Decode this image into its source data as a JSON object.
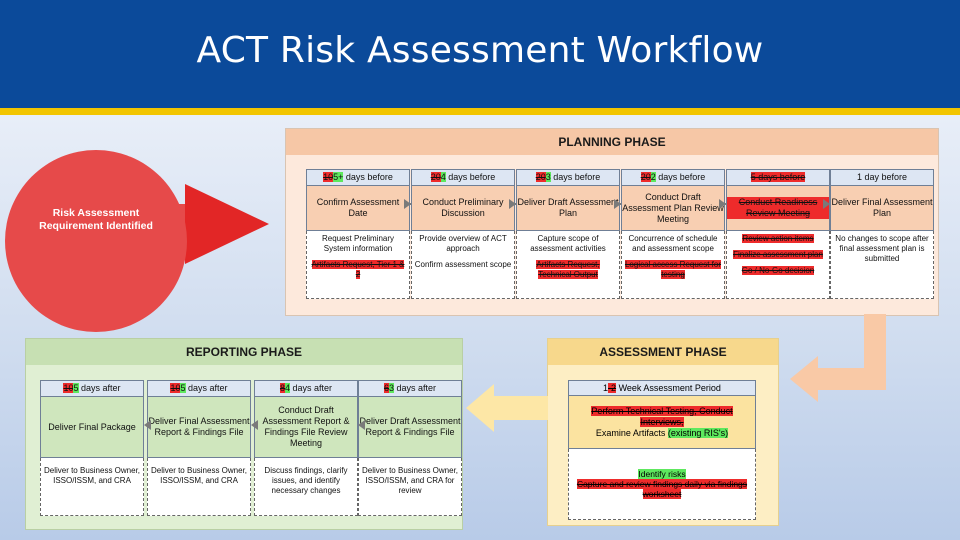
{
  "title": "ACT Risk Assessment Workflow",
  "circle": {
    "label": "Risk Assessment Requirement Identified"
  },
  "planning": {
    "title": "PLANNING PHASE",
    "steps": [
      {
        "timing_old": "10",
        "timing_new": "5+",
        "timing_rest": " days before",
        "label": "Confirm Assessment Date",
        "details": [
          "Request Preliminary System information"
        ],
        "details_red": [
          "Artifacts Request, Tier 1 & 2"
        ]
      },
      {
        "timing_old": "20",
        "timing_new": "4",
        "timing_rest": " days before",
        "label": "Conduct Preliminary Discussion",
        "details": [
          "Provide overview of ACT approach",
          "Confirm assessment scope"
        ],
        "details_red": []
      },
      {
        "timing_old": "20",
        "timing_new": "3",
        "timing_rest": " days before",
        "label": "Deliver Draft Assessment Plan",
        "details": [
          "Capture scope of assessment activities"
        ],
        "details_red": [
          "Artifacts Request, Technical Output"
        ]
      },
      {
        "timing_old": "20",
        "timing_new": "2",
        "timing_rest": " days before",
        "label": "Conduct Draft Assessment Plan Review Meeting",
        "details": [
          "Concurrence of schedule and assessment scope"
        ],
        "details_red": [
          "Logical access Request for testing"
        ]
      },
      {
        "timing_old": "",
        "timing_new": "",
        "timing_rest": "5 days before",
        "label": "Conduct Readiness Review Meeting",
        "details": [],
        "details_red": [
          "Review action items",
          "Finalize assessment plan",
          "Go / No-Go decision"
        ]
      },
      {
        "timing_old": "",
        "timing_new": "",
        "timing_rest": "1 day before",
        "label": "Deliver Final Assessment Plan",
        "details": [
          "No changes to scope after final assessment plan is submitted"
        ],
        "details_red": []
      }
    ]
  },
  "assessment": {
    "title": "ASSESSMENT PHASE",
    "timing_pre": "1",
    "timing_old": "-2",
    "timing_rest": " Week Assessment Period",
    "body_red": "Perform Technical Testing, Conduct Interviews,",
    "body_plain": "Examine Artifacts ",
    "body_green": "(existing RIS's)",
    "detail_green": "Identify risks",
    "detail_red": "Capture and review findings daily via findings worksheet"
  },
  "reporting": {
    "title": "REPORTING PHASE",
    "steps": [
      {
        "timing_old": "10",
        "timing_new": "5",
        "timing_rest": " days after",
        "label": "Deliver Final Package",
        "detail": "Deliver to Business Owner, ISSO/ISSM, and CRA"
      },
      {
        "timing_old": "10",
        "timing_new": "5",
        "timing_rest": " days after",
        "label": "Deliver Final Assessment Report & Findings File",
        "detail": "Deliver to Business Owner, ISSO/ISSM, and CRA"
      },
      {
        "timing_old": "8",
        "timing_new": "4",
        "timing_rest": " days after",
        "label": "Conduct Draft Assessment Report & Findings File Review Meeting",
        "detail": "Discuss findings, clarify issues, and identify necessary changes"
      },
      {
        "timing_old": "6",
        "timing_new": "3",
        "timing_rest": " days after",
        "label": "Deliver Draft Assessment Report & Findings File",
        "detail": "Deliver to Business Owner, ISSO/ISSM, and CRA for review"
      }
    ]
  },
  "colors": {
    "title_bar": "#0b4a9a",
    "accent": "#f2c500",
    "circle": "#e64a4a",
    "strike_red": "#ee2b2b",
    "highlight_green": "#5ee85e"
  }
}
